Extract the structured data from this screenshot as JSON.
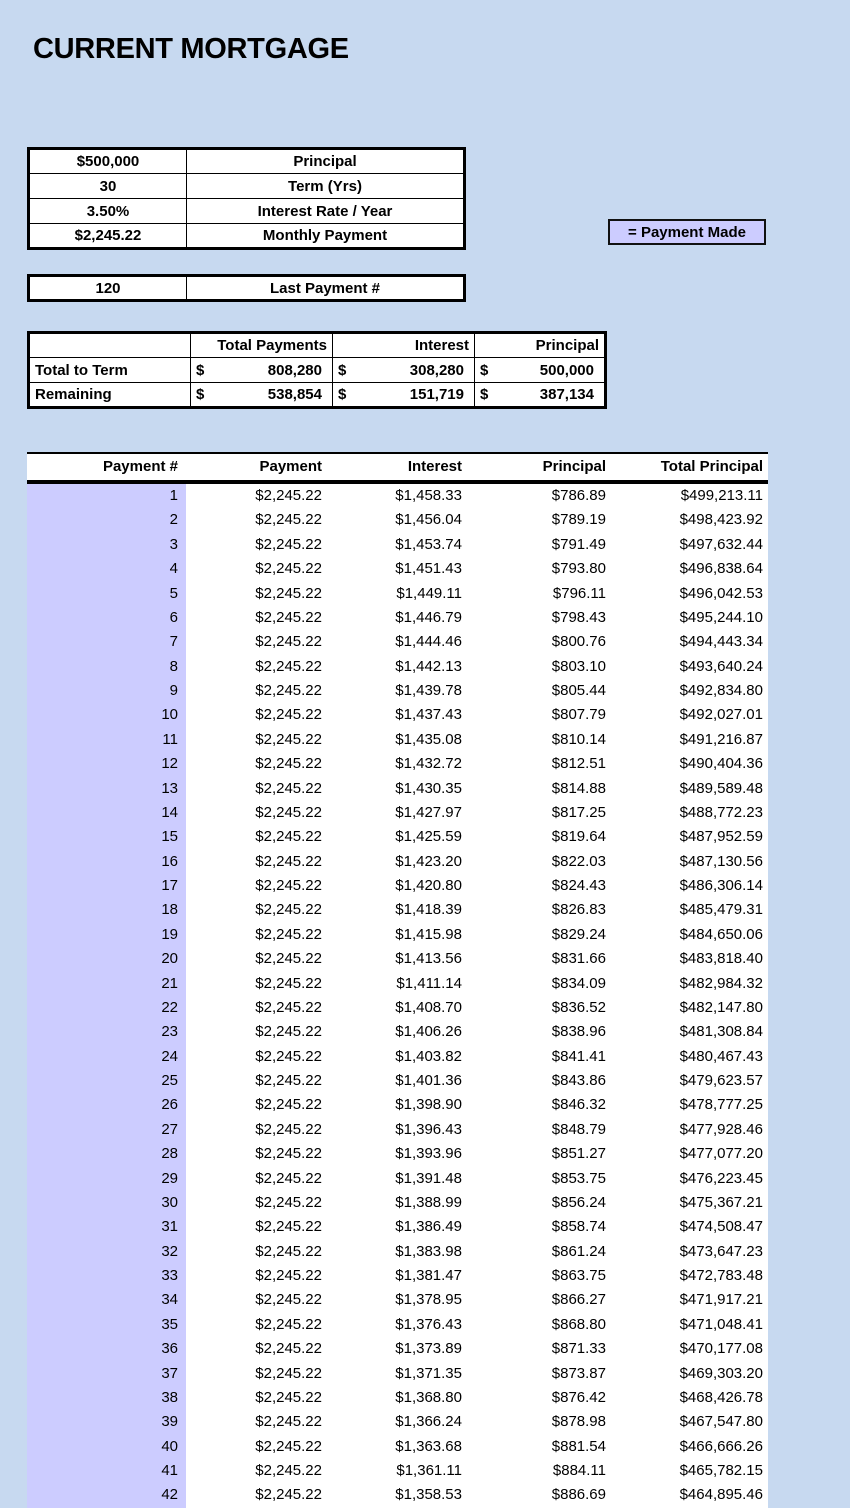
{
  "page": {
    "title": "CURRENT MORTGAGE"
  },
  "colors": {
    "background": "#c7d9f0",
    "payment_made_highlight": "#ccccff",
    "cell_background": "#ffffff",
    "border": "#000000",
    "text": "#000000"
  },
  "loan_inputs": {
    "rows": [
      {
        "value": "$500,000",
        "label": "Principal"
      },
      {
        "value": "30",
        "label": "Term (Yrs)"
      },
      {
        "value": "3.50%",
        "label": "Interest Rate / Year"
      },
      {
        "value": "$2,245.22",
        "label": "Monthly Payment"
      }
    ]
  },
  "legend": {
    "label": "= Payment Made"
  },
  "last_payment": {
    "value": "120",
    "label": "Last Payment #"
  },
  "summary": {
    "currency_symbol": "$",
    "columns": [
      "",
      "Total Payments",
      "Interest",
      "Principal"
    ],
    "rows": [
      {
        "label": "Total to Term",
        "total_payments": "808,280",
        "interest": "308,280",
        "principal": "500,000"
      },
      {
        "label": "Remaining",
        "total_payments": "538,854",
        "interest": "151,719",
        "principal": "387,134"
      }
    ]
  },
  "amortization": {
    "columns": [
      "Payment #",
      "Payment",
      "Interest",
      "Principal",
      "Total Principal"
    ],
    "rows": [
      {
        "n": "1",
        "payment": "$2,245.22",
        "interest": "$1,458.33",
        "principal": "$786.89",
        "total_principal": "$499,213.11",
        "paid": true
      },
      {
        "n": "2",
        "payment": "$2,245.22",
        "interest": "$1,456.04",
        "principal": "$789.19",
        "total_principal": "$498,423.92",
        "paid": true
      },
      {
        "n": "3",
        "payment": "$2,245.22",
        "interest": "$1,453.74",
        "principal": "$791.49",
        "total_principal": "$497,632.44",
        "paid": true
      },
      {
        "n": "4",
        "payment": "$2,245.22",
        "interest": "$1,451.43",
        "principal": "$793.80",
        "total_principal": "$496,838.64",
        "paid": true
      },
      {
        "n": "5",
        "payment": "$2,245.22",
        "interest": "$1,449.11",
        "principal": "$796.11",
        "total_principal": "$496,042.53",
        "paid": true
      },
      {
        "n": "6",
        "payment": "$2,245.22",
        "interest": "$1,446.79",
        "principal": "$798.43",
        "total_principal": "$495,244.10",
        "paid": true
      },
      {
        "n": "7",
        "payment": "$2,245.22",
        "interest": "$1,444.46",
        "principal": "$800.76",
        "total_principal": "$494,443.34",
        "paid": true
      },
      {
        "n": "8",
        "payment": "$2,245.22",
        "interest": "$1,442.13",
        "principal": "$803.10",
        "total_principal": "$493,640.24",
        "paid": true
      },
      {
        "n": "9",
        "payment": "$2,245.22",
        "interest": "$1,439.78",
        "principal": "$805.44",
        "total_principal": "$492,834.80",
        "paid": true
      },
      {
        "n": "10",
        "payment": "$2,245.22",
        "interest": "$1,437.43",
        "principal": "$807.79",
        "total_principal": "$492,027.01",
        "paid": true
      },
      {
        "n": "11",
        "payment": "$2,245.22",
        "interest": "$1,435.08",
        "principal": "$810.14",
        "total_principal": "$491,216.87",
        "paid": true
      },
      {
        "n": "12",
        "payment": "$2,245.22",
        "interest": "$1,432.72",
        "principal": "$812.51",
        "total_principal": "$490,404.36",
        "paid": true
      },
      {
        "n": "13",
        "payment": "$2,245.22",
        "interest": "$1,430.35",
        "principal": "$814.88",
        "total_principal": "$489,589.48",
        "paid": true
      },
      {
        "n": "14",
        "payment": "$2,245.22",
        "interest": "$1,427.97",
        "principal": "$817.25",
        "total_principal": "$488,772.23",
        "paid": true
      },
      {
        "n": "15",
        "payment": "$2,245.22",
        "interest": "$1,425.59",
        "principal": "$819.64",
        "total_principal": "$487,952.59",
        "paid": true
      },
      {
        "n": "16",
        "payment": "$2,245.22",
        "interest": "$1,423.20",
        "principal": "$822.03",
        "total_principal": "$487,130.56",
        "paid": true
      },
      {
        "n": "17",
        "payment": "$2,245.22",
        "interest": "$1,420.80",
        "principal": "$824.43",
        "total_principal": "$486,306.14",
        "paid": true
      },
      {
        "n": "18",
        "payment": "$2,245.22",
        "interest": "$1,418.39",
        "principal": "$826.83",
        "total_principal": "$485,479.31",
        "paid": true
      },
      {
        "n": "19",
        "payment": "$2,245.22",
        "interest": "$1,415.98",
        "principal": "$829.24",
        "total_principal": "$484,650.06",
        "paid": true
      },
      {
        "n": "20",
        "payment": "$2,245.22",
        "interest": "$1,413.56",
        "principal": "$831.66",
        "total_principal": "$483,818.40",
        "paid": true
      },
      {
        "n": "21",
        "payment": "$2,245.22",
        "interest": "$1,411.14",
        "principal": "$834.09",
        "total_principal": "$482,984.32",
        "paid": true
      },
      {
        "n": "22",
        "payment": "$2,245.22",
        "interest": "$1,408.70",
        "principal": "$836.52",
        "total_principal": "$482,147.80",
        "paid": true
      },
      {
        "n": "23",
        "payment": "$2,245.22",
        "interest": "$1,406.26",
        "principal": "$838.96",
        "total_principal": "$481,308.84",
        "paid": true
      },
      {
        "n": "24",
        "payment": "$2,245.22",
        "interest": "$1,403.82",
        "principal": "$841.41",
        "total_principal": "$480,467.43",
        "paid": true
      },
      {
        "n": "25",
        "payment": "$2,245.22",
        "interest": "$1,401.36",
        "principal": "$843.86",
        "total_principal": "$479,623.57",
        "paid": true
      },
      {
        "n": "26",
        "payment": "$2,245.22",
        "interest": "$1,398.90",
        "principal": "$846.32",
        "total_principal": "$478,777.25",
        "paid": true
      },
      {
        "n": "27",
        "payment": "$2,245.22",
        "interest": "$1,396.43",
        "principal": "$848.79",
        "total_principal": "$477,928.46",
        "paid": true
      },
      {
        "n": "28",
        "payment": "$2,245.22",
        "interest": "$1,393.96",
        "principal": "$851.27",
        "total_principal": "$477,077.20",
        "paid": true
      },
      {
        "n": "29",
        "payment": "$2,245.22",
        "interest": "$1,391.48",
        "principal": "$853.75",
        "total_principal": "$476,223.45",
        "paid": true
      },
      {
        "n": "30",
        "payment": "$2,245.22",
        "interest": "$1,388.99",
        "principal": "$856.24",
        "total_principal": "$475,367.21",
        "paid": true
      },
      {
        "n": "31",
        "payment": "$2,245.22",
        "interest": "$1,386.49",
        "principal": "$858.74",
        "total_principal": "$474,508.47",
        "paid": true
      },
      {
        "n": "32",
        "payment": "$2,245.22",
        "interest": "$1,383.98",
        "principal": "$861.24",
        "total_principal": "$473,647.23",
        "paid": true
      },
      {
        "n": "33",
        "payment": "$2,245.22",
        "interest": "$1,381.47",
        "principal": "$863.75",
        "total_principal": "$472,783.48",
        "paid": true
      },
      {
        "n": "34",
        "payment": "$2,245.22",
        "interest": "$1,378.95",
        "principal": "$866.27",
        "total_principal": "$471,917.21",
        "paid": true
      },
      {
        "n": "35",
        "payment": "$2,245.22",
        "interest": "$1,376.43",
        "principal": "$868.80",
        "total_principal": "$471,048.41",
        "paid": true
      },
      {
        "n": "36",
        "payment": "$2,245.22",
        "interest": "$1,373.89",
        "principal": "$871.33",
        "total_principal": "$470,177.08",
        "paid": true
      },
      {
        "n": "37",
        "payment": "$2,245.22",
        "interest": "$1,371.35",
        "principal": "$873.87",
        "total_principal": "$469,303.20",
        "paid": true
      },
      {
        "n": "38",
        "payment": "$2,245.22",
        "interest": "$1,368.80",
        "principal": "$876.42",
        "total_principal": "$468,426.78",
        "paid": true
      },
      {
        "n": "39",
        "payment": "$2,245.22",
        "interest": "$1,366.24",
        "principal": "$878.98",
        "total_principal": "$467,547.80",
        "paid": true
      },
      {
        "n": "40",
        "payment": "$2,245.22",
        "interest": "$1,363.68",
        "principal": "$881.54",
        "total_principal": "$466,666.26",
        "paid": true
      },
      {
        "n": "41",
        "payment": "$2,245.22",
        "interest": "$1,361.11",
        "principal": "$884.11",
        "total_principal": "$465,782.15",
        "paid": true
      },
      {
        "n": "42",
        "payment": "$2,245.22",
        "interest": "$1,358.53",
        "principal": "$886.69",
        "total_principal": "$464,895.46",
        "paid": true
      }
    ]
  }
}
